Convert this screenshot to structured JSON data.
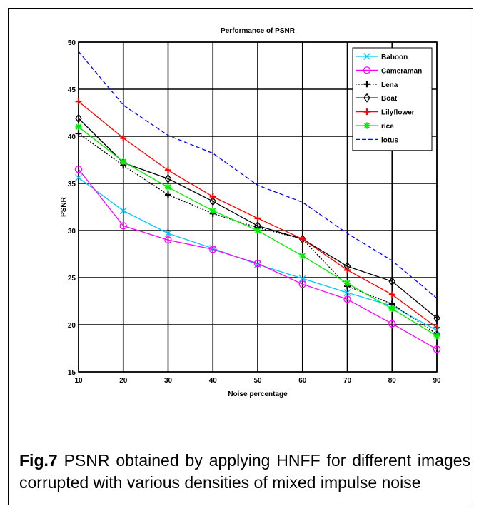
{
  "chart_data": {
    "type": "line",
    "title": "Performance of PSNR",
    "xlabel": "Noise percentage",
    "ylabel": "PSNR",
    "x": [
      10,
      20,
      30,
      40,
      50,
      60,
      70,
      80,
      90
    ],
    "xlim": [
      10,
      90
    ],
    "ylim": [
      15,
      50
    ],
    "xticks": [
      10,
      20,
      30,
      40,
      50,
      60,
      70,
      80,
      90
    ],
    "yticks": [
      15,
      20,
      25,
      30,
      35,
      40,
      45,
      50
    ],
    "grid": true,
    "legend_position": "top-right",
    "series": [
      {
        "name": "Baboon",
        "color": "#00c8ff",
        "marker": "x",
        "dash": "solid",
        "values": [
          35.6,
          32.1,
          29.7,
          28.1,
          26.4,
          24.9,
          23.4,
          22.0,
          19.4
        ]
      },
      {
        "name": "Cameraman",
        "color": "#ff00ff",
        "marker": "circle",
        "dash": "solid",
        "values": [
          36.5,
          30.5,
          29.0,
          28.0,
          26.5,
          24.3,
          22.7,
          20.1,
          17.4
        ]
      },
      {
        "name": "Lena",
        "color": "#000000",
        "marker": "plus",
        "dash": "dotted",
        "values": [
          40.3,
          36.9,
          33.8,
          31.8,
          30.3,
          29.1,
          24.1,
          22.2,
          19.0
        ]
      },
      {
        "name": "Boat",
        "color": "#000000",
        "marker": "diamond",
        "dash": "solid",
        "values": [
          41.9,
          37.2,
          35.5,
          33.1,
          30.5,
          29.1,
          26.2,
          24.6,
          20.7
        ]
      },
      {
        "name": "Lilyflower",
        "color": "#ff0000",
        "marker": "plus",
        "dash": "solid",
        "values": [
          43.7,
          39.8,
          36.4,
          33.6,
          31.3,
          29.1,
          25.8,
          23.2,
          19.7
        ]
      },
      {
        "name": "rice",
        "color": "#00ee00",
        "marker": "star",
        "dash": "solid",
        "values": [
          41.0,
          37.3,
          34.6,
          32.1,
          30.0,
          27.3,
          24.4,
          21.7,
          18.8
        ]
      },
      {
        "name": "lotus",
        "color": "#0000ff",
        "marker": "none",
        "dash": "dashed",
        "values": [
          49.0,
          43.3,
          40.1,
          38.2,
          34.8,
          33.0,
          29.7,
          26.8,
          22.8
        ]
      }
    ]
  },
  "caption": {
    "label": "Fig.7",
    "text": " PSNR obtained by applying HNFF for different images corrupted with various densities of mixed impulse noise"
  }
}
